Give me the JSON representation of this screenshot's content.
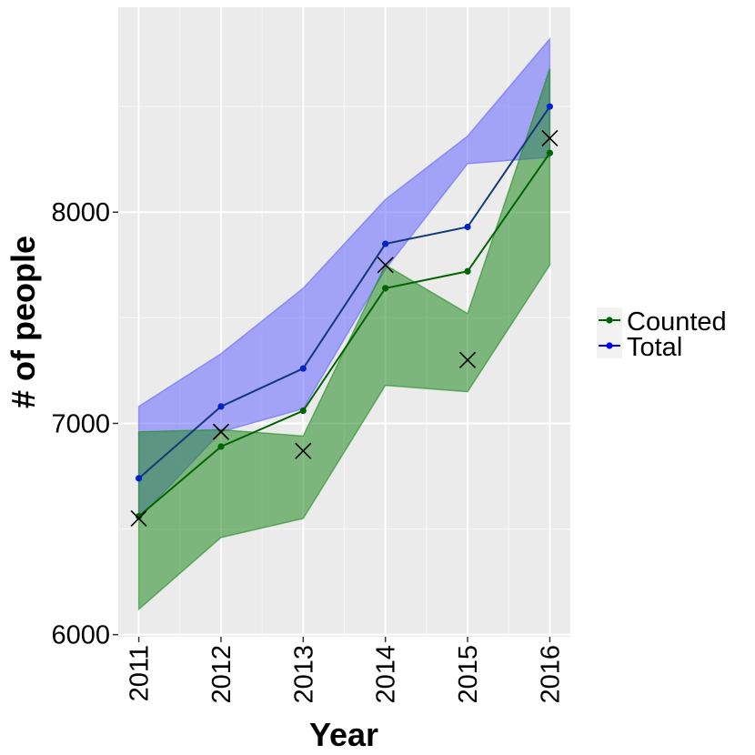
{
  "chart_data": {
    "type": "line",
    "title": "",
    "xlabel": "Year",
    "ylabel": "# of people",
    "x": [
      2011,
      2012,
      2013,
      2014,
      2015,
      2016
    ],
    "x_tick_labels": [
      "2011",
      "2012",
      "2013",
      "2014",
      "2015",
      "2016"
    ],
    "y_ticks": [
      6000,
      7000,
      8000
    ],
    "y_tick_labels": [
      "6000",
      "7000",
      "8000"
    ],
    "xlim": [
      2010.75,
      2016.25
    ],
    "ylim": [
      5990,
      8970
    ],
    "grid": true,
    "legend_position": "right",
    "series": [
      {
        "name": "Counted",
        "color": "#006400",
        "values": [
          6560,
          6890,
          7060,
          7640,
          7720,
          8280
        ],
        "band_lower": [
          6120,
          6460,
          6550,
          7180,
          7150,
          7750
        ],
        "band_upper": [
          6960,
          6970,
          6940,
          7750,
          7520,
          8680
        ],
        "band_color": "#228B22"
      },
      {
        "name": "Total",
        "color": "#0000ff",
        "values": [
          6740,
          7080,
          7260,
          7850,
          7930,
          8500
        ],
        "band_lower": [
          6550,
          6960,
          7070,
          7730,
          8230,
          8260
        ],
        "band_upper": [
          7080,
          7330,
          7640,
          8060,
          8360,
          8820
        ],
        "band_color": "#6666ff"
      }
    ],
    "observed": {
      "marker": "x",
      "color": "#000000",
      "values": [
        6550,
        6960,
        6870,
        7750,
        7300,
        8350
      ]
    }
  }
}
